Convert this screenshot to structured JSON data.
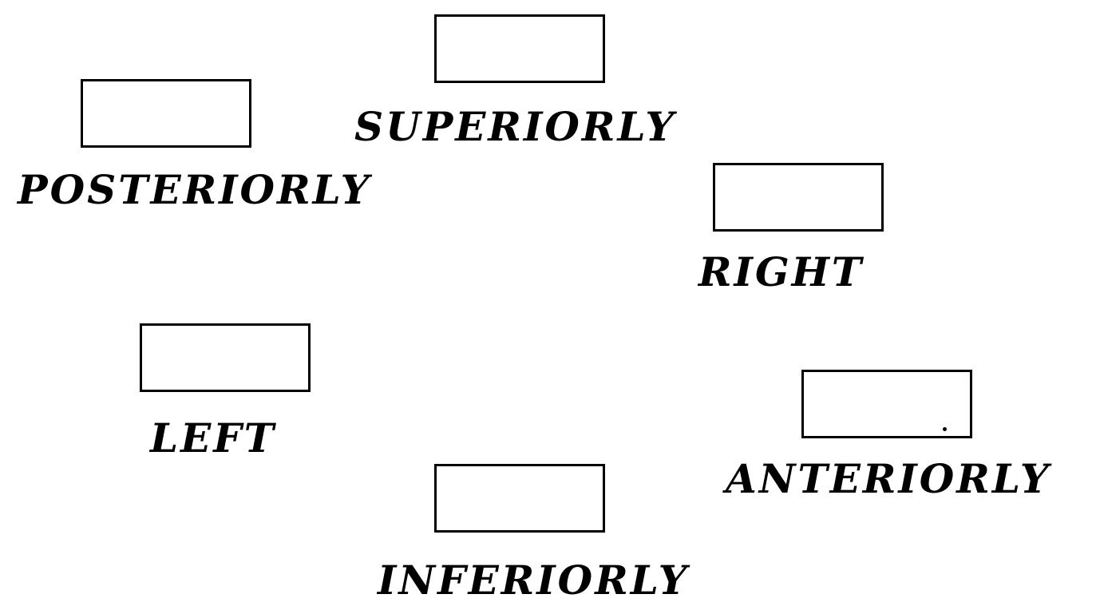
{
  "labels": {
    "superiorly": "SUPERIORLY",
    "posteriorly": "POSTERIORLY",
    "right": "RIGHT",
    "left": "LEFT",
    "anteriorly": "ANTERIORLY",
    "inferiorly": "INFERIORLY"
  },
  "colors": {
    "line": "#000000",
    "background": "#ffffff"
  }
}
